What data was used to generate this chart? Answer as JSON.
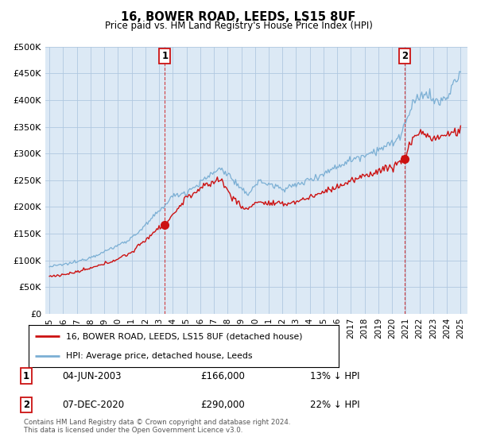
{
  "title": "16, BOWER ROAD, LEEDS, LS15 8UF",
  "subtitle": "Price paid vs. HM Land Registry's House Price Index (HPI)",
  "ylim": [
    0,
    500000
  ],
  "yticks": [
    0,
    50000,
    100000,
    150000,
    200000,
    250000,
    300000,
    350000,
    400000,
    450000,
    500000
  ],
  "ytick_labels": [
    "£0",
    "£50K",
    "£100K",
    "£150K",
    "£200K",
    "£250K",
    "£300K",
    "£350K",
    "£400K",
    "£450K",
    "£500K"
  ],
  "xlim_start": 1994.7,
  "xlim_end": 2025.5,
  "xtick_years": [
    1995,
    1996,
    1997,
    1998,
    1999,
    2000,
    2001,
    2002,
    2003,
    2004,
    2005,
    2006,
    2007,
    2008,
    2009,
    2010,
    2011,
    2012,
    2013,
    2014,
    2015,
    2016,
    2017,
    2018,
    2019,
    2020,
    2021,
    2022,
    2023,
    2024,
    2025
  ],
  "transaction1_x": 2003.42,
  "transaction1_y": 166000,
  "transaction2_x": 2020.92,
  "transaction2_y": 290000,
  "legend_line1": "16, BOWER ROAD, LEEDS, LS15 8UF (detached house)",
  "legend_line2": "HPI: Average price, detached house, Leeds",
  "footnote": "Contains HM Land Registry data © Crown copyright and database right 2024.\nThis data is licensed under the Open Government Licence v3.0.",
  "table_row1": [
    "1",
    "04-JUN-2003",
    "£166,000",
    "13% ↓ HPI"
  ],
  "table_row2": [
    "2",
    "07-DEC-2020",
    "£290,000",
    "22% ↓ HPI"
  ],
  "hpi_color": "#7bafd4",
  "price_color": "#cc1111",
  "marker_color": "#cc1111",
  "bg_color": "#ffffff",
  "plot_bg_color": "#dce9f5",
  "grid_color": "#b0c8e0",
  "hpi_anchors": {
    "1995.0": 88000,
    "1996.0": 92000,
    "1997.0": 97000,
    "1998.0": 106000,
    "1999.0": 116000,
    "2000.0": 128000,
    "2001.0": 142000,
    "2002.0": 165000,
    "2003.0": 192000,
    "2004.0": 220000,
    "2005.0": 228000,
    "2006.0": 245000,
    "2007.0": 265000,
    "2007.5": 272000,
    "2008.0": 262000,
    "2008.5": 248000,
    "2009.0": 230000,
    "2009.5": 225000,
    "2010.0": 242000,
    "2010.5": 248000,
    "2011.0": 242000,
    "2012.0": 235000,
    "2013.0": 240000,
    "2014.0": 252000,
    "2015.0": 262000,
    "2016.0": 276000,
    "2017.0": 288000,
    "2018.0": 298000,
    "2019.0": 308000,
    "2020.0": 318000,
    "2020.5": 330000,
    "2021.0": 358000,
    "2021.5": 390000,
    "2022.0": 405000,
    "2022.5": 415000,
    "2023.0": 400000,
    "2023.5": 395000,
    "2024.0": 405000,
    "2024.5": 430000,
    "2025.0": 450000
  },
  "prop_anchors": {
    "1995.0": 70000,
    "1996.0": 73000,
    "1997.0": 78000,
    "1998.0": 85000,
    "1999.0": 93000,
    "2000.0": 103000,
    "2001.0": 115000,
    "2002.0": 138000,
    "2003.0": 162000,
    "2003.42": 166000,
    "2004.0": 185000,
    "2005.0": 218000,
    "2006.0": 233000,
    "2007.0": 248000,
    "2007.5": 252000,
    "2008.0": 230000,
    "2009.0": 200000,
    "2009.5": 195000,
    "2010.0": 210000,
    "2011.0": 206000,
    "2012.0": 205000,
    "2013.0": 210000,
    "2014.0": 218000,
    "2015.0": 228000,
    "2016.0": 238000,
    "2017.0": 248000,
    "2018.0": 258000,
    "2019.0": 268000,
    "2020.0": 275000,
    "2020.92": 290000,
    "2021.0": 295000,
    "2021.5": 330000,
    "2022.0": 340000,
    "2022.5": 335000,
    "2023.0": 328000,
    "2023.5": 330000,
    "2024.0": 335000,
    "2024.5": 340000,
    "2025.0": 342000
  }
}
